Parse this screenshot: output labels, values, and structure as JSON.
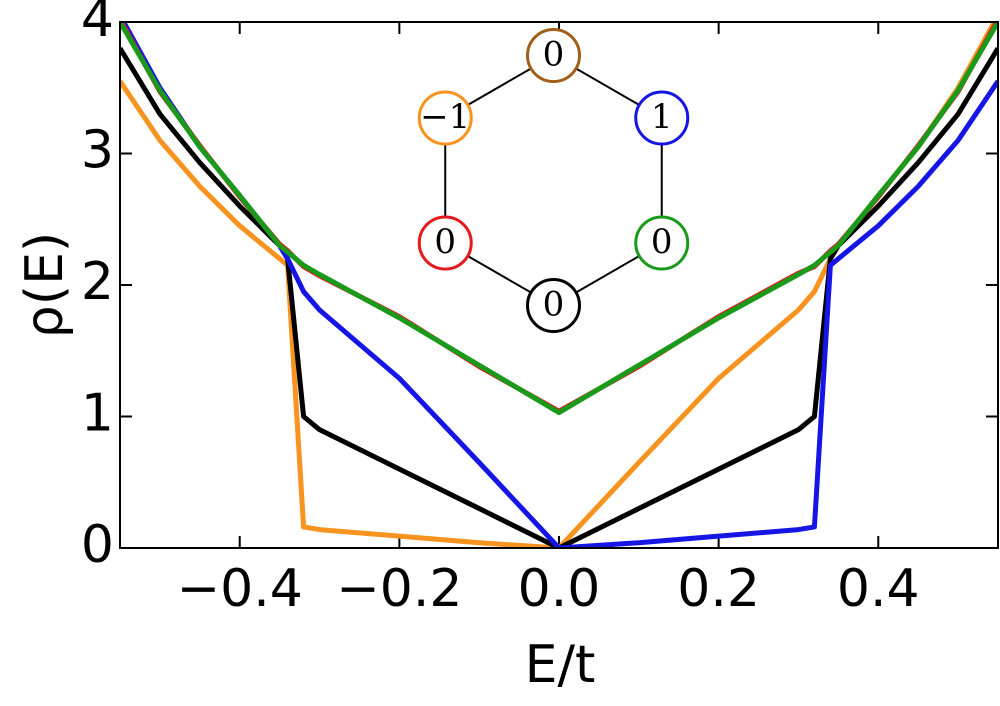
{
  "chart_data": {
    "type": "line",
    "x_label": "E/t",
    "y_label": "ρ(E)",
    "x": [
      -0.55,
      -0.5,
      -0.45,
      -0.4,
      -0.35,
      -0.34,
      -0.32,
      -0.3,
      -0.2,
      -0.1,
      0,
      0.1,
      0.2,
      0.3,
      0.32,
      0.34,
      0.35,
      0.4,
      0.45,
      0.5,
      0.55
    ],
    "series": [
      {
        "color": "#f7931e",
        "values": [
          3.55,
          3.1,
          2.75,
          2.45,
          2.2,
          2.15,
          0.16,
          0.14,
          0.09,
          0.04,
          0,
          0.65,
          1.29,
          1.81,
          1.95,
          2.2,
          2.3,
          2.68,
          3.05,
          3.5,
          4.05
        ]
      },
      {
        "color": "#000000",
        "values": [
          3.8,
          3.3,
          2.93,
          2.6,
          2.3,
          2.2,
          1.0,
          0.9,
          0.6,
          0.3,
          0,
          0.3,
          0.6,
          0.9,
          1.0,
          2.2,
          2.3,
          2.6,
          2.93,
          3.3,
          3.8
        ]
      },
      {
        "color": "#1515e6",
        "values": [
          4.05,
          3.5,
          3.05,
          2.68,
          2.3,
          2.2,
          1.95,
          1.81,
          1.29,
          0.65,
          0,
          0.04,
          0.09,
          0.14,
          0.16,
          2.15,
          2.2,
          2.45,
          2.75,
          3.1,
          3.55
        ]
      },
      {
        "color": "#e41a1c",
        "values": [
          4.02,
          3.47,
          3.06,
          2.67,
          2.31,
          2.26,
          2.14,
          2.07,
          1.76,
          1.38,
          1.04,
          1.38,
          1.76,
          2.09,
          2.14,
          2.26,
          2.31,
          2.67,
          3.06,
          3.47,
          4.02
        ]
      },
      {
        "color": "#1a9a1a",
        "values": [
          4.0,
          3.48,
          3.05,
          2.68,
          2.3,
          2.25,
          2.15,
          2.08,
          1.75,
          1.39,
          1.03,
          1.39,
          1.75,
          2.08,
          2.15,
          2.25,
          2.3,
          2.68,
          3.05,
          3.48,
          4.0
        ]
      }
    ],
    "xlim": [
      -0.55,
      0.55
    ],
    "ylim": [
      0,
      4
    ],
    "xticks": [
      {
        "value": -0.4,
        "label": "−0.4"
      },
      {
        "value": -0.2,
        "label": "−0.2"
      },
      {
        "value": 0,
        "label": "0.0"
      },
      {
        "value": 0.2,
        "label": "0.2"
      },
      {
        "value": 0.4,
        "label": "0.4"
      }
    ],
    "yticks": [
      0,
      1,
      2,
      3,
      4
    ],
    "annotations": [
      {
        "label": "0",
        "color": "#a0601a"
      },
      {
        "label": "1",
        "color": "#1515e6"
      },
      {
        "label": "0",
        "color": "#1a9a1a"
      },
      {
        "label": "0",
        "color": "#000000"
      },
      {
        "label": "0",
        "color": "#e41a1c"
      },
      {
        "label": "−1",
        "color": "#f7931e"
      }
    ]
  }
}
